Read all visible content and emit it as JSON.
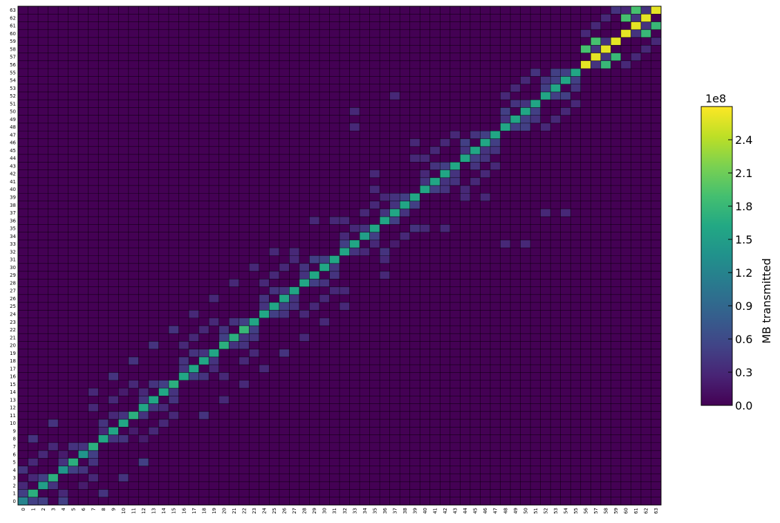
{
  "chart_data": {
    "type": "heatmap",
    "title": "",
    "xlabel": "",
    "ylabel": "",
    "n": 64,
    "x_ticks": [
      "0",
      "1",
      "2",
      "3",
      "4",
      "5",
      "6",
      "7",
      "8",
      "9",
      "10",
      "11",
      "12",
      "13",
      "14",
      "15",
      "16",
      "17",
      "18",
      "19",
      "20",
      "21",
      "22",
      "23",
      "24",
      "25",
      "26",
      "27",
      "28",
      "29",
      "30",
      "31",
      "32",
      "33",
      "34",
      "35",
      "36",
      "37",
      "38",
      "39",
      "40",
      "41",
      "42",
      "43",
      "44",
      "45",
      "46",
      "47",
      "48",
      "49",
      "50",
      "51",
      "52",
      "53",
      "54",
      "55",
      "56",
      "57",
      "58",
      "59",
      "60",
      "61",
      "62",
      "63"
    ],
    "y_ticks": [
      "0",
      "1",
      "2",
      "3",
      "4",
      "5",
      "6",
      "7",
      "8",
      "9",
      "10",
      "11",
      "12",
      "13",
      "14",
      "15",
      "16",
      "17",
      "18",
      "19",
      "20",
      "21",
      "22",
      "23",
      "24",
      "25",
      "26",
      "27",
      "28",
      "29",
      "30",
      "31",
      "32",
      "33",
      "34",
      "35",
      "36",
      "37",
      "38",
      "39",
      "40",
      "41",
      "42",
      "43",
      "44",
      "45",
      "46",
      "47",
      "48",
      "49",
      "50",
      "51",
      "52",
      "53",
      "54",
      "55",
      "56",
      "57",
      "58",
      "59",
      "60",
      "61",
      "62",
      "63"
    ],
    "colorbar": {
      "label": "MB transmitted",
      "offset_text": "1e8",
      "ticks": [
        "0.0",
        "0.3",
        "0.6",
        "0.9",
        "1.2",
        "1.5",
        "1.8",
        "2.1",
        "2.4"
      ],
      "range": [
        0,
        2.7
      ],
      "colormap": "viridis"
    },
    "value_unit": "1e8 MB",
    "cells": [
      [
        0,
        0,
        1.2
      ],
      [
        1,
        0,
        0.5
      ],
      [
        2,
        0,
        0.5
      ],
      [
        4,
        0,
        0.5
      ],
      [
        0,
        1,
        0.5
      ],
      [
        1,
        1,
        1.7
      ],
      [
        4,
        1,
        0.3
      ],
      [
        8,
        1,
        0.4
      ],
      [
        0,
        2,
        0.3
      ],
      [
        2,
        2,
        1.5
      ],
      [
        3,
        2,
        0.4
      ],
      [
        6,
        2,
        0.2
      ],
      [
        1,
        3,
        0.3
      ],
      [
        2,
        3,
        0.5
      ],
      [
        3,
        3,
        1.7
      ],
      [
        7,
        3,
        0.3
      ],
      [
        10,
        3,
        0.4
      ],
      [
        0,
        4,
        0.4
      ],
      [
        4,
        4,
        1.4
      ],
      [
        5,
        4,
        0.5
      ],
      [
        6,
        4,
        0.4
      ],
      [
        1,
        5,
        0.3
      ],
      [
        4,
        5,
        0.4
      ],
      [
        5,
        5,
        1.7
      ],
      [
        7,
        5,
        0.4
      ],
      [
        12,
        5,
        0.5
      ],
      [
        2,
        6,
        0.3
      ],
      [
        4,
        6,
        0.2
      ],
      [
        6,
        6,
        1.4
      ],
      [
        7,
        6,
        0.5
      ],
      [
        3,
        7,
        0.3
      ],
      [
        5,
        7,
        0.4
      ],
      [
        6,
        7,
        0.4
      ],
      [
        7,
        7,
        1.7
      ],
      [
        1,
        8,
        0.4
      ],
      [
        8,
        8,
        1.6
      ],
      [
        9,
        8,
        0.4
      ],
      [
        10,
        8,
        0.4
      ],
      [
        12,
        8,
        0.2
      ],
      [
        8,
        9,
        0.3
      ],
      [
        9,
        9,
        1.6
      ],
      [
        11,
        9,
        0.2
      ],
      [
        13,
        9,
        0.3
      ],
      [
        3,
        10,
        0.4
      ],
      [
        8,
        10,
        0.4
      ],
      [
        10,
        10,
        1.6
      ],
      [
        14,
        10,
        0.3
      ],
      [
        9,
        11,
        0.3
      ],
      [
        10,
        11,
        0.4
      ],
      [
        11,
        11,
        1.7
      ],
      [
        12,
        11,
        0.4
      ],
      [
        15,
        11,
        0.3
      ],
      [
        18,
        11,
        0.4
      ],
      [
        7,
        12,
        0.3
      ],
      [
        12,
        12,
        1.6
      ],
      [
        13,
        12,
        0.4
      ],
      [
        14,
        12,
        0.3
      ],
      [
        9,
        13,
        0.3
      ],
      [
        12,
        13,
        0.4
      ],
      [
        13,
        13,
        1.6
      ],
      [
        15,
        13,
        0.4
      ],
      [
        20,
        13,
        0.3
      ],
      [
        7,
        14,
        0.3
      ],
      [
        10,
        14,
        0.2
      ],
      [
        12,
        14,
        0.3
      ],
      [
        14,
        14,
        1.6
      ],
      [
        15,
        14,
        0.4
      ],
      [
        11,
        15,
        0.3
      ],
      [
        13,
        15,
        0.4
      ],
      [
        14,
        15,
        0.5
      ],
      [
        15,
        15,
        1.7
      ],
      [
        22,
        15,
        0.3
      ],
      [
        9,
        16,
        0.4
      ],
      [
        16,
        16,
        1.6
      ],
      [
        17,
        16,
        0.5
      ],
      [
        18,
        16,
        0.4
      ],
      [
        20,
        16,
        0.3
      ],
      [
        16,
        17,
        0.4
      ],
      [
        17,
        17,
        1.6
      ],
      [
        19,
        17,
        0.3
      ],
      [
        24,
        17,
        0.3
      ],
      [
        11,
        18,
        0.4
      ],
      [
        16,
        18,
        0.4
      ],
      [
        18,
        18,
        1.6
      ],
      [
        19,
        18,
        0.4
      ],
      [
        22,
        18,
        0.3
      ],
      [
        17,
        19,
        0.4
      ],
      [
        18,
        19,
        0.4
      ],
      [
        19,
        19,
        1.6
      ],
      [
        23,
        19,
        0.3
      ],
      [
        26,
        19,
        0.4
      ],
      [
        13,
        20,
        0.4
      ],
      [
        16,
        20,
        0.3
      ],
      [
        20,
        20,
        1.7
      ],
      [
        21,
        20,
        0.4
      ],
      [
        22,
        20,
        0.4
      ],
      [
        17,
        21,
        0.3
      ],
      [
        20,
        21,
        0.5
      ],
      [
        21,
        21,
        1.7
      ],
      [
        22,
        21,
        0.4
      ],
      [
        23,
        21,
        0.4
      ],
      [
        28,
        21,
        0.3
      ],
      [
        15,
        22,
        0.4
      ],
      [
        18,
        22,
        0.3
      ],
      [
        20,
        22,
        0.4
      ],
      [
        22,
        22,
        1.8
      ],
      [
        23,
        22,
        0.5
      ],
      [
        19,
        23,
        0.3
      ],
      [
        21,
        23,
        0.4
      ],
      [
        22,
        23,
        0.5
      ],
      [
        23,
        23,
        1.6
      ],
      [
        30,
        23,
        0.3
      ],
      [
        17,
        24,
        0.3
      ],
      [
        24,
        24,
        1.6
      ],
      [
        25,
        24,
        0.5
      ],
      [
        26,
        24,
        0.4
      ],
      [
        28,
        24,
        0.3
      ],
      [
        24,
        25,
        0.4
      ],
      [
        25,
        25,
        1.6
      ],
      [
        26,
        25,
        0.5
      ],
      [
        27,
        25,
        0.4
      ],
      [
        29,
        25,
        0.3
      ],
      [
        32,
        25,
        0.3
      ],
      [
        19,
        26,
        0.3
      ],
      [
        24,
        26,
        0.4
      ],
      [
        26,
        26,
        1.6
      ],
      [
        27,
        26,
        0.4
      ],
      [
        30,
        26,
        0.3
      ],
      [
        25,
        27,
        0.4
      ],
      [
        26,
        27,
        0.4
      ],
      [
        27,
        27,
        1.6
      ],
      [
        31,
        27,
        0.3
      ],
      [
        32,
        27,
        0.3
      ],
      [
        21,
        28,
        0.3
      ],
      [
        24,
        28,
        0.3
      ],
      [
        28,
        28,
        1.6
      ],
      [
        29,
        28,
        0.5
      ],
      [
        30,
        28,
        0.4
      ],
      [
        25,
        29,
        0.3
      ],
      [
        28,
        29,
        0.4
      ],
      [
        29,
        29,
        1.6
      ],
      [
        31,
        29,
        0.4
      ],
      [
        36,
        29,
        0.3
      ],
      [
        23,
        30,
        0.3
      ],
      [
        26,
        30,
        0.3
      ],
      [
        28,
        30,
        0.4
      ],
      [
        30,
        30,
        1.6
      ],
      [
        31,
        30,
        0.4
      ],
      [
        27,
        31,
        0.3
      ],
      [
        29,
        31,
        0.5
      ],
      [
        30,
        31,
        0.5
      ],
      [
        31,
        31,
        1.6
      ],
      [
        36,
        31,
        0.3
      ],
      [
        25,
        32,
        0.3
      ],
      [
        27,
        32,
        0.3
      ],
      [
        32,
        32,
        1.6
      ],
      [
        33,
        32,
        0.4
      ],
      [
        34,
        32,
        0.3
      ],
      [
        36,
        32,
        0.4
      ],
      [
        32,
        33,
        0.5
      ],
      [
        33,
        33,
        1.6
      ],
      [
        35,
        33,
        0.3
      ],
      [
        37,
        33,
        0.2
      ],
      [
        48,
        33,
        0.3
      ],
      [
        50,
        33,
        0.3
      ],
      [
        32,
        34,
        0.3
      ],
      [
        34,
        34,
        1.5
      ],
      [
        35,
        34,
        0.5
      ],
      [
        38,
        34,
        0.3
      ],
      [
        33,
        35,
        0.3
      ],
      [
        34,
        35,
        0.4
      ],
      [
        35,
        35,
        1.6
      ],
      [
        39,
        35,
        0.4
      ],
      [
        40,
        35,
        0.3
      ],
      [
        42,
        35,
        0.3
      ],
      [
        29,
        36,
        0.3
      ],
      [
        31,
        36,
        0.3
      ],
      [
        32,
        36,
        0.3
      ],
      [
        36,
        36,
        1.6
      ],
      [
        37,
        36,
        0.5
      ],
      [
        34,
        37,
        0.3
      ],
      [
        36,
        37,
        0.4
      ],
      [
        37,
        37,
        1.6
      ],
      [
        38,
        37,
        0.4
      ],
      [
        52,
        37,
        0.3
      ],
      [
        54,
        37,
        0.3
      ],
      [
        35,
        38,
        0.3
      ],
      [
        37,
        38,
        0.4
      ],
      [
        38,
        38,
        1.6
      ],
      [
        39,
        38,
        0.5
      ],
      [
        36,
        39,
        0.3
      ],
      [
        37,
        39,
        0.4
      ],
      [
        38,
        39,
        0.5
      ],
      [
        39,
        39,
        1.6
      ],
      [
        44,
        39,
        0.3
      ],
      [
        46,
        39,
        0.3
      ],
      [
        35,
        40,
        0.3
      ],
      [
        40,
        40,
        1.6
      ],
      [
        41,
        40,
        0.5
      ],
      [
        42,
        40,
        0.4
      ],
      [
        44,
        40,
        0.3
      ],
      [
        40,
        41,
        0.4
      ],
      [
        41,
        41,
        1.6
      ],
      [
        42,
        41,
        0.4
      ],
      [
        43,
        41,
        0.4
      ],
      [
        45,
        41,
        0.3
      ],
      [
        35,
        42,
        0.3
      ],
      [
        40,
        42,
        0.3
      ],
      [
        42,
        42,
        1.6
      ],
      [
        43,
        42,
        0.4
      ],
      [
        46,
        42,
        0.3
      ],
      [
        41,
        43,
        0.4
      ],
      [
        42,
        43,
        0.5
      ],
      [
        43,
        43,
        1.6
      ],
      [
        45,
        43,
        0.4
      ],
      [
        47,
        43,
        0.3
      ],
      [
        39,
        44,
        0.3
      ],
      [
        40,
        44,
        0.3
      ],
      [
        44,
        44,
        1.6
      ],
      [
        45,
        44,
        0.5
      ],
      [
        46,
        44,
        0.4
      ],
      [
        41,
        45,
        0.3
      ],
      [
        44,
        45,
        0.4
      ],
      [
        45,
        45,
        1.6
      ],
      [
        46,
        45,
        0.4
      ],
      [
        47,
        45,
        0.4
      ],
      [
        39,
        46,
        0.3
      ],
      [
        42,
        46,
        0.3
      ],
      [
        44,
        46,
        0.5
      ],
      [
        46,
        46,
        1.6
      ],
      [
        47,
        46,
        0.5
      ],
      [
        43,
        47,
        0.3
      ],
      [
        45,
        47,
        0.4
      ],
      [
        46,
        47,
        0.5
      ],
      [
        47,
        47,
        1.6
      ],
      [
        33,
        48,
        0.3
      ],
      [
        48,
        48,
        1.6
      ],
      [
        49,
        48,
        0.5
      ],
      [
        50,
        48,
        0.5
      ],
      [
        52,
        48,
        0.3
      ],
      [
        48,
        49,
        0.4
      ],
      [
        49,
        49,
        1.6
      ],
      [
        50,
        49,
        0.5
      ],
      [
        51,
        49,
        0.4
      ],
      [
        53,
        49,
        0.3
      ],
      [
        33,
        50,
        0.3
      ],
      [
        48,
        50,
        0.5
      ],
      [
        50,
        50,
        1.6
      ],
      [
        51,
        50,
        0.5
      ],
      [
        54,
        50,
        0.3
      ],
      [
        49,
        51,
        0.4
      ],
      [
        50,
        51,
        0.4
      ],
      [
        51,
        51,
        1.6
      ],
      [
        55,
        51,
        0.3
      ],
      [
        37,
        52,
        0.3
      ],
      [
        48,
        52,
        0.3
      ],
      [
        52,
        52,
        1.6
      ],
      [
        53,
        52,
        0.5
      ],
      [
        54,
        52,
        0.5
      ],
      [
        49,
        53,
        0.3
      ],
      [
        52,
        53,
        0.5
      ],
      [
        53,
        53,
        1.6
      ],
      [
        55,
        53,
        0.4
      ],
      [
        50,
        54,
        0.3
      ],
      [
        52,
        54,
        0.4
      ],
      [
        53,
        54,
        0.5
      ],
      [
        54,
        54,
        1.6
      ],
      [
        55,
        54,
        0.5
      ],
      [
        51,
        55,
        0.4
      ],
      [
        53,
        55,
        0.5
      ],
      [
        54,
        55,
        0.5
      ],
      [
        55,
        55,
        1.6
      ],
      [
        56,
        56,
        2.6
      ],
      [
        57,
        56,
        0.4
      ],
      [
        58,
        56,
        1.8
      ],
      [
        60,
        56,
        0.3
      ],
      [
        57,
        57,
        2.6
      ],
      [
        58,
        57,
        0.4
      ],
      [
        59,
        57,
        1.8
      ],
      [
        61,
        57,
        0.3
      ],
      [
        56,
        58,
        1.9
      ],
      [
        57,
        58,
        0.4
      ],
      [
        58,
        58,
        2.6
      ],
      [
        62,
        58,
        0.3
      ],
      [
        57,
        59,
        1.9
      ],
      [
        58,
        59,
        0.4
      ],
      [
        59,
        59,
        2.6
      ],
      [
        63,
        59,
        0.3
      ],
      [
        56,
        60,
        0.3
      ],
      [
        60,
        60,
        2.6
      ],
      [
        61,
        60,
        0.4
      ],
      [
        62,
        60,
        1.8
      ],
      [
        57,
        61,
        0.3
      ],
      [
        61,
        61,
        2.6
      ],
      [
        62,
        61,
        0.4
      ],
      [
        63,
        61,
        1.8
      ],
      [
        58,
        62,
        0.3
      ],
      [
        60,
        62,
        1.9
      ],
      [
        61,
        62,
        0.4
      ],
      [
        62,
        62,
        2.6
      ],
      [
        59,
        63,
        0.4
      ],
      [
        60,
        63,
        0.3
      ],
      [
        61,
        63,
        1.9
      ],
      [
        62,
        63,
        0.4
      ],
      [
        63,
        63,
        2.6
      ]
    ]
  }
}
